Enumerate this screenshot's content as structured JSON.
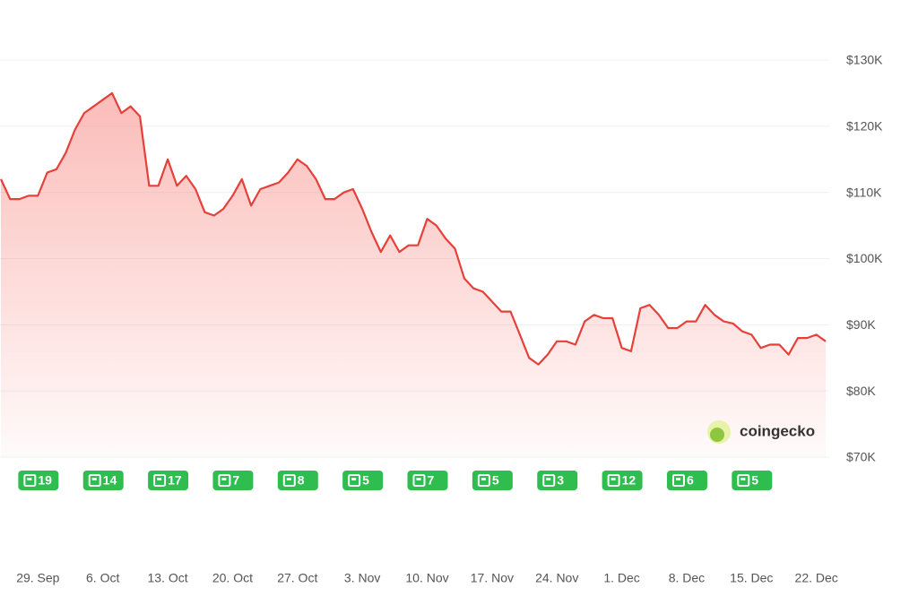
{
  "chart_data": {
    "type": "area",
    "watermark": "coingecko",
    "x": [
      "25. Sep",
      "26. Sep",
      "27. Sep",
      "28. Sep",
      "29. Sep",
      "30. Sep",
      "1. Oct",
      "2. Oct",
      "3. Oct",
      "4. Oct",
      "5. Oct",
      "6. Oct",
      "7. Oct",
      "8. Oct",
      "9. Oct",
      "10. Oct",
      "11. Oct",
      "12. Oct",
      "13. Oct",
      "14. Oct",
      "15. Oct",
      "16. Oct",
      "17. Oct",
      "18. Oct",
      "19. Oct",
      "20. Oct",
      "21. Oct",
      "22. Oct",
      "23. Oct",
      "24. Oct",
      "25. Oct",
      "26. Oct",
      "27. Oct",
      "28. Oct",
      "29. Oct",
      "30. Oct",
      "31. Oct",
      "1. Nov",
      "2. Nov",
      "3. Nov",
      "4. Nov",
      "5. Nov",
      "6. Nov",
      "7. Nov",
      "8. Nov",
      "9. Nov",
      "10. Nov",
      "11. Nov",
      "12. Nov",
      "13. Nov",
      "14. Nov",
      "15. Nov",
      "16. Nov",
      "17. Nov",
      "18. Nov",
      "19. Nov",
      "20. Nov",
      "21. Nov",
      "22. Nov",
      "23. Nov",
      "24. Nov",
      "25. Nov",
      "26. Nov",
      "27. Nov",
      "28. Nov",
      "29. Nov",
      "30. Nov",
      "1. Dec",
      "2. Dec",
      "3. Dec",
      "4. Dec",
      "5. Dec",
      "6. Dec",
      "7. Dec",
      "8. Dec",
      "9. Dec",
      "10. Dec",
      "11. Dec",
      "12. Dec",
      "13. Dec",
      "14. Dec",
      "15. Dec",
      "16. Dec",
      "17. Dec",
      "18. Dec",
      "19. Dec",
      "20. Dec",
      "21. Dec",
      "22. Dec",
      "23. Dec"
    ],
    "series": [
      {
        "color": "#e5413a",
        "values": [
          112000,
          109000,
          109000,
          109500,
          109500,
          113000,
          113500,
          116000,
          119500,
          122000,
          123000,
          124000,
          125000,
          122000,
          123000,
          121500,
          111000,
          111000,
          115000,
          111000,
          112500,
          110500,
          107000,
          106500,
          107500,
          109500,
          112000,
          108000,
          110500,
          111000,
          111500,
          113000,
          115000,
          114000,
          112000,
          109000,
          109000,
          110000,
          110500,
          107500,
          104000,
          101000,
          103500,
          101000,
          102000,
          102000,
          106000,
          105000,
          103000,
          101500,
          97000,
          95500,
          95000,
          93500,
          92000,
          92000,
          88500,
          85000,
          84000,
          85500,
          87500,
          87500,
          87000,
          90500,
          91500,
          91000,
          91000,
          86500,
          86000,
          92500,
          93000,
          91500,
          89500,
          89500,
          90500,
          90500,
          93000,
          91500,
          90500,
          90200,
          89000,
          88500,
          86500,
          87000,
          87000,
          85500,
          88000,
          88000,
          88500,
          87500
        ]
      }
    ],
    "ylim": [
      70000,
      130000
    ],
    "yticks": [
      {
        "value": 70000,
        "label": "$70K"
      },
      {
        "value": 80000,
        "label": "$80K"
      },
      {
        "value": 90000,
        "label": "$90K"
      },
      {
        "value": 100000,
        "label": "$100K"
      },
      {
        "value": 110000,
        "label": "$110K"
      },
      {
        "value": 120000,
        "label": "$120K"
      },
      {
        "value": 130000,
        "label": "$130K"
      }
    ],
    "xticks": [
      "29. Sep",
      "6. Oct",
      "13. Oct",
      "20. Oct",
      "27. Oct",
      "3. Nov",
      "10. Nov",
      "17. Nov",
      "24. Nov",
      "1. Dec",
      "8. Dec",
      "15. Dec",
      "22. Dec"
    ],
    "news": [
      19,
      14,
      17,
      7,
      8,
      5,
      7,
      5,
      3,
      12,
      6,
      5
    ],
    "grid": true
  }
}
